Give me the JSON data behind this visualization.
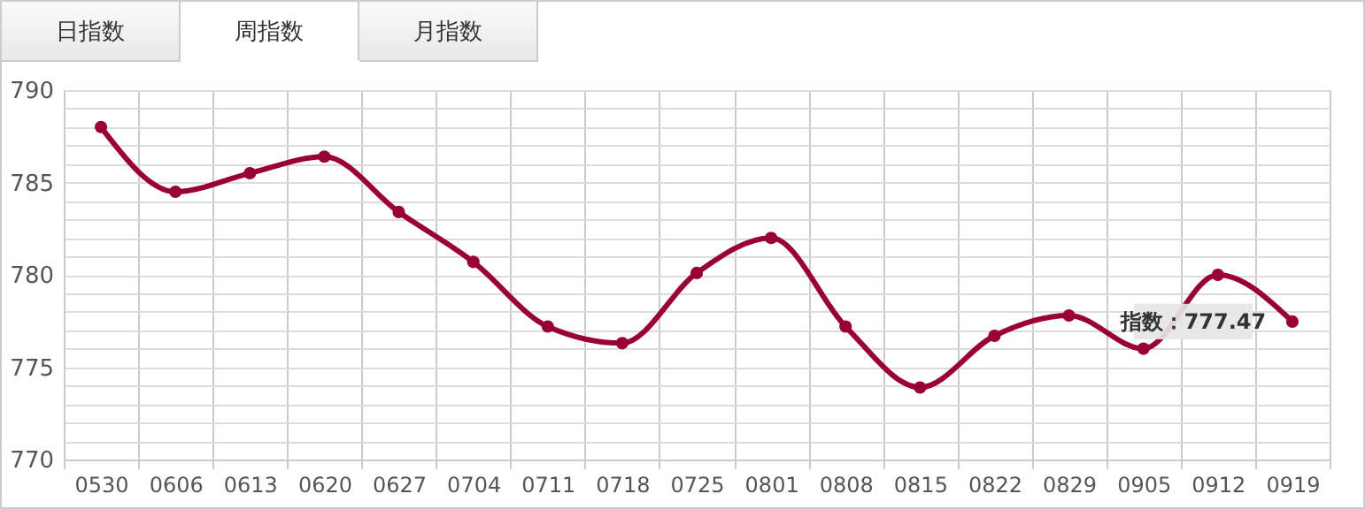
{
  "chart_data": {
    "type": "line",
    "categories": [
      "0530",
      "0606",
      "0613",
      "0620",
      "0627",
      "0704",
      "0711",
      "0718",
      "0725",
      "0801",
      "0808",
      "0815",
      "0822",
      "0829",
      "0905",
      "0912",
      "0919"
    ],
    "series": [
      {
        "color": "#990033",
        "values": [
          788.0,
          784.5,
          785.5,
          786.4,
          783.4,
          780.7,
          777.2,
          776.3,
          780.1,
          782.0,
          777.2,
          773.9,
          776.7,
          777.8,
          776.0,
          780.0,
          777.47
        ]
      }
    ],
    "ylim": [
      770,
      790
    ],
    "yticks": [
      770,
      {
        "value": 771,
        "label": null
      },
      {
        "value": 772,
        "label": null
      },
      {
        "value": 773,
        "label": null
      },
      {
        "value": 774,
        "label": null
      },
      775,
      {
        "value": 776,
        "label": null
      },
      {
        "value": 777,
        "label": null
      },
      {
        "value": 778,
        "label": null
      },
      {
        "value": 779,
        "label": null
      },
      780,
      {
        "value": 781,
        "label": null
      },
      {
        "value": 782,
        "label": null
      },
      {
        "value": 783,
        "label": null
      },
      {
        "value": 784,
        "label": null
      },
      785,
      {
        "value": 786,
        "label": null
      },
      {
        "value": 787,
        "label": null
      },
      {
        "value": 788,
        "label": null
      },
      {
        "value": 789,
        "label": null
      },
      790
    ],
    "grid": true,
    "marker": "circle",
    "line_style": "solid",
    "annotations": [
      "日指数",
      "周指数",
      "月指数",
      {
        "text": "指数：777.47",
        "x": "0919",
        "y": 777.47
      }
    ]
  }
}
